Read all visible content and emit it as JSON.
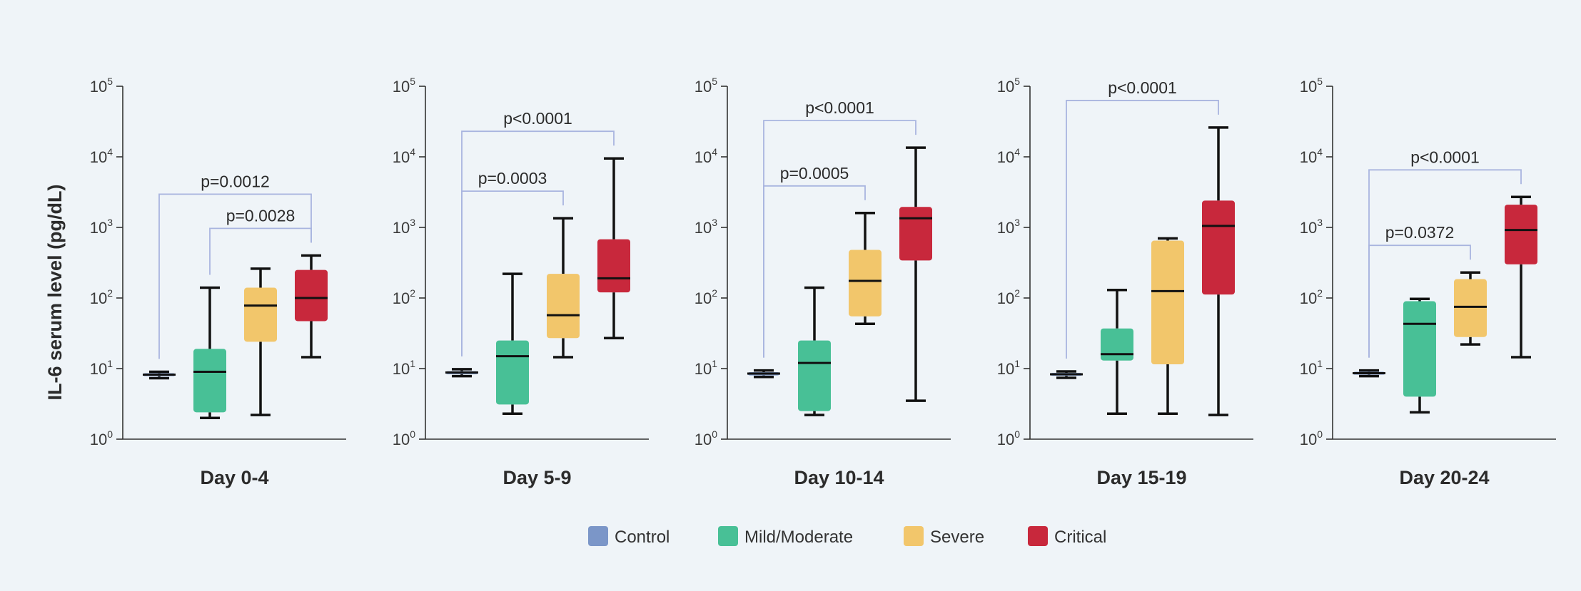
{
  "chart_data": {
    "type": "box",
    "ylabel": "IL-6 serum level (pg/dL)",
    "yscale": "log",
    "ylim": [
      1,
      100000
    ],
    "yticks": [
      {
        "value": 1,
        "base": "10",
        "exp": "0"
      },
      {
        "value": 10,
        "base": "10",
        "exp": "1"
      },
      {
        "value": 100,
        "base": "10",
        "exp": "2"
      },
      {
        "value": 1000,
        "base": "10",
        "exp": "3"
      },
      {
        "value": 10000,
        "base": "10",
        "exp": "4"
      },
      {
        "value": 100000,
        "base": "10",
        "exp": "5"
      }
    ],
    "legend": {
      "position": "bottom-center",
      "items": [
        {
          "name": "Control",
          "color": "#7b96c8"
        },
        {
          "name": "Mild/Moderate",
          "color": "#48c096"
        },
        {
          "name": "Severe",
          "color": "#f2c66b"
        },
        {
          "name": "Critical",
          "color": "#c8283c"
        }
      ]
    },
    "panels": [
      {
        "title": "Day 0-4",
        "boxes": [
          {
            "group": "Control",
            "min": 7.3,
            "q1": 7.8,
            "median": 8.2,
            "q3": 8.6,
            "max": 9.0
          },
          {
            "group": "Mild/Moderate",
            "min": 2.0,
            "q1": 2.4,
            "median": 9.0,
            "q3": 19.0,
            "max": 140
          },
          {
            "group": "Severe",
            "min": 2.2,
            "q1": 24,
            "median": 78,
            "q3": 140,
            "max": 260
          },
          {
            "group": "Critical",
            "min": 14.5,
            "q1": 47,
            "median": 100,
            "q3": 250,
            "max": 400
          }
        ],
        "brackets": [
          {
            "from": 0,
            "to": 3,
            "label": "p=0.0012"
          },
          {
            "from": 1,
            "to": 3,
            "label": "p=0.0028"
          }
        ]
      },
      {
        "title": "Day 5-9",
        "boxes": [
          {
            "group": "Control",
            "min": 7.8,
            "q1": 8.3,
            "median": 8.8,
            "q3": 9.2,
            "max": 9.8
          },
          {
            "group": "Mild/Moderate",
            "min": 2.3,
            "q1": 3.1,
            "median": 15,
            "q3": 25,
            "max": 220
          },
          {
            "group": "Severe",
            "min": 14.5,
            "q1": 27,
            "median": 57,
            "q3": 220,
            "max": 1350
          },
          {
            "group": "Critical",
            "min": 27,
            "q1": 120,
            "median": 190,
            "q3": 680,
            "max": 9500
          }
        ],
        "brackets": [
          {
            "from": 0,
            "to": 2,
            "label": "p=0.0003"
          },
          {
            "from": 0,
            "to": 3,
            "label": "p<0.0001"
          }
        ]
      },
      {
        "title": "Day 10-14",
        "boxes": [
          {
            "group": "Control",
            "min": 7.6,
            "q1": 8.0,
            "median": 8.5,
            "q3": 8.9,
            "max": 9.4
          },
          {
            "group": "Mild/Moderate",
            "min": 2.2,
            "q1": 2.5,
            "median": 12,
            "q3": 25,
            "max": 140
          },
          {
            "group": "Severe",
            "min": 43,
            "q1": 55,
            "median": 175,
            "q3": 480,
            "max": 1600
          },
          {
            "group": "Critical",
            "min": 3.5,
            "q1": 340,
            "median": 1350,
            "q3": 1950,
            "max": 13500
          }
        ],
        "brackets": [
          {
            "from": 0,
            "to": 2,
            "label": "p=0.0005"
          },
          {
            "from": 0,
            "to": 3,
            "label": "p<0.0001"
          }
        ]
      },
      {
        "title": "Day 15-19",
        "boxes": [
          {
            "group": "Control",
            "min": 7.4,
            "q1": 7.9,
            "median": 8.3,
            "q3": 8.7,
            "max": 9.1
          },
          {
            "group": "Mild/Moderate",
            "min": 2.3,
            "q1": 13,
            "median": 16,
            "q3": 37,
            "max": 130
          },
          {
            "group": "Severe",
            "min": 2.3,
            "q1": 11.5,
            "median": 125,
            "q3": 650,
            "max": 700
          },
          {
            "group": "Critical",
            "min": 2.2,
            "q1": 112,
            "median": 1050,
            "q3": 2400,
            "max": 26000
          }
        ],
        "brackets": [
          {
            "from": 0,
            "to": 3,
            "label": "p<0.0001"
          }
        ]
      },
      {
        "title": "Day 20-24",
        "boxes": [
          {
            "group": "Control",
            "min": 7.8,
            "q1": 8.2,
            "median": 8.6,
            "q3": 9.0,
            "max": 9.4
          },
          {
            "group": "Mild/Moderate",
            "min": 2.4,
            "q1": 4.0,
            "median": 43,
            "q3": 90,
            "max": 97
          },
          {
            "group": "Severe",
            "min": 22,
            "q1": 28,
            "median": 75,
            "q3": 185,
            "max": 230
          },
          {
            "group": "Critical",
            "min": 14.5,
            "q1": 300,
            "median": 920,
            "q3": 2100,
            "max": 2700
          }
        ],
        "brackets": [
          {
            "from": 0,
            "to": 2,
            "label": "p=0.0372"
          },
          {
            "from": 0,
            "to": 3,
            "label": "p<0.0001"
          }
        ]
      }
    ]
  }
}
